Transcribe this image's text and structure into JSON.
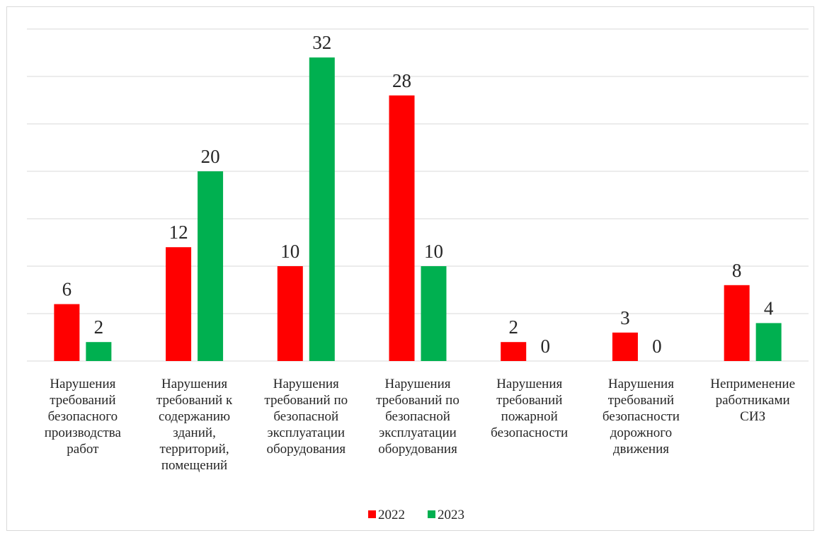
{
  "chart_data": {
    "type": "bar",
    "title": "",
    "xlabel": "",
    "ylabel": "",
    "ylim": [
      0,
      35
    ],
    "grid": true,
    "legend": "bottom",
    "categories": [
      [
        "Нарушения",
        "требований",
        "безопасного",
        "производства",
        "работ"
      ],
      [
        "Нарушения",
        "требований к",
        "содержанию",
        "зданий,",
        "территорий,",
        "помещений"
      ],
      [
        "Нарушения",
        "требований по",
        "безопасной",
        "эксплуатации",
        "оборудования"
      ],
      [
        "Нарушения",
        "требований по",
        "безопасной",
        "эксплуатации",
        "оборудования"
      ],
      [
        "Нарушения",
        "требований",
        "пожарной",
        "безопасности"
      ],
      [
        "Нарушения",
        "требований",
        "безопасности",
        "дорожного",
        "движения"
      ],
      [
        "Неприменение",
        "работниками",
        "СИЗ"
      ]
    ],
    "series": [
      {
        "name": "2022",
        "color": "#ff0000",
        "values": [
          6,
          12,
          10,
          28,
          2,
          3,
          8
        ]
      },
      {
        "name": "2023",
        "color": "#00b050",
        "values": [
          2,
          20,
          32,
          10,
          0,
          0,
          4
        ]
      }
    ]
  }
}
